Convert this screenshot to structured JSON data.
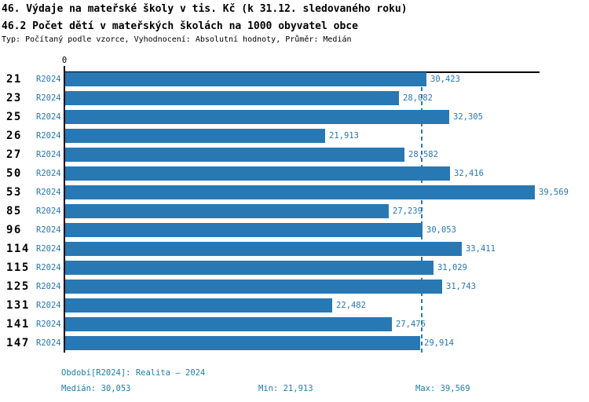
{
  "header": {
    "title_line1": "46. Výdaje na mateřské školy v tis. Kč (k 31.12. sledovaného roku)",
    "title_line2": "46.2 Počet dětí v mateřských školách na 1000 obyvatel obce",
    "meta_line": "Typ: Počítaný podle vzorce, Vyhodnocení: Absolutní hodnoty, Průměr: Medián"
  },
  "chart_data": {
    "type": "bar",
    "orientation": "horizontal",
    "title": "46. Výdaje na mateřské školy v tis. Kč (k 31.12. sledovaného roku)",
    "subtitle": "46.2 Počet dětí v mateřských školách na 1000 obyvatel obce",
    "categories": [
      "21",
      "23",
      "25",
      "26",
      "27",
      "50",
      "53",
      "85",
      "96",
      "114",
      "115",
      "125",
      "131",
      "141",
      "147"
    ],
    "series": [
      {
        "name": "R2024",
        "values": [
          30423,
          28082,
          32305,
          21913,
          28582,
          32416,
          39569,
          27239,
          30053,
          33411,
          31029,
          31743,
          22482,
          27476,
          29914
        ],
        "value_labels": [
          "30,423",
          "28,082",
          "32,305",
          "21,913",
          "28,582",
          "32,416",
          "39,569",
          "27,239",
          "30,053",
          "33,411",
          "31,029",
          "31,743",
          "22,482",
          "27,476",
          "29,914"
        ]
      }
    ],
    "x_axis": {
      "min": 0,
      "max": 40000,
      "zero_label": "0"
    },
    "median_value": 30053,
    "grid": false,
    "legend_position": "bottom",
    "bar_color": "#2878b4",
    "median_line_color": "#2878b4"
  },
  "footer": {
    "period": "Období[R2024]: Realita – 2024",
    "median": "Medián: 30,053",
    "min": "Min: 21,913",
    "max": "Max: 39,569"
  },
  "colors": {
    "accent_blue": "#2878b4",
    "footer_text": "#1e7fa8",
    "axis_black": "#000000",
    "background": "#ffffff"
  }
}
